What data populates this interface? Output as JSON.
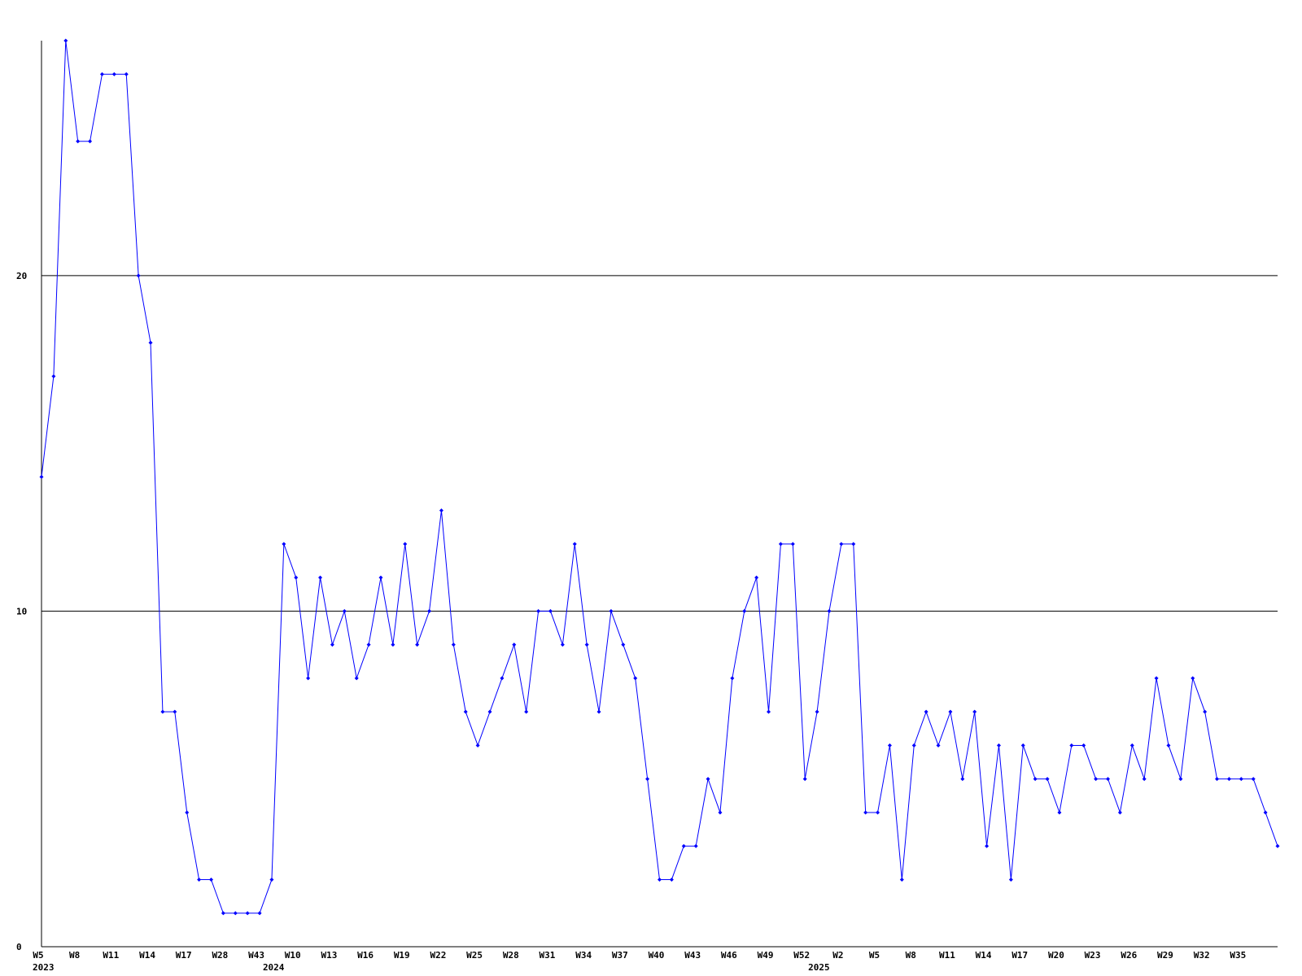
{
  "chart_data": {
    "type": "line",
    "categories": [
      "W5",
      null,
      null,
      "W8",
      null,
      null,
      "W11",
      null,
      null,
      "W14",
      null,
      null,
      "W17",
      null,
      null,
      "W28",
      null,
      null,
      "W43",
      null,
      null,
      "W10",
      null,
      null,
      "W13",
      null,
      null,
      "W16",
      null,
      null,
      "W19",
      null,
      null,
      "W22",
      null,
      null,
      "W25",
      null,
      null,
      "W28",
      null,
      null,
      "W31",
      null,
      null,
      "W34",
      null,
      null,
      "W37",
      null,
      null,
      "W40",
      null,
      null,
      "W43",
      null,
      null,
      "W46",
      null,
      null,
      "W49",
      null,
      null,
      "W52",
      null,
      null,
      "W2",
      null,
      null,
      "W5",
      null,
      null,
      "W8",
      null,
      null,
      "W11",
      null,
      null,
      "W14",
      null,
      null,
      "W17",
      null,
      null,
      "W20",
      null,
      null,
      "W23",
      null,
      null,
      "W26",
      null,
      null,
      "W29",
      null,
      null,
      "W32",
      null,
      null,
      "W35",
      null,
      null,
      null
    ],
    "years": [
      "2023",
      null,
      null,
      null,
      null,
      null,
      null,
      null,
      null,
      null,
      null,
      null,
      null,
      null,
      null,
      null,
      null,
      null,
      null,
      "2024",
      null,
      null,
      null,
      null,
      null,
      null,
      null,
      null,
      null,
      null,
      null,
      null,
      null,
      null,
      null,
      null,
      null,
      null,
      null,
      null,
      null,
      null,
      null,
      null,
      null,
      null,
      null,
      null,
      null,
      null,
      null,
      null,
      null,
      null,
      null,
      null,
      null,
      null,
      null,
      null,
      null,
      null,
      null,
      null,
      "2025",
      null,
      null,
      null,
      null,
      null,
      null,
      null,
      null,
      null,
      null,
      null,
      null,
      null,
      null,
      null,
      null,
      null,
      null,
      null,
      null,
      null,
      null,
      null,
      null,
      null,
      null,
      null,
      null,
      null,
      null,
      null,
      null,
      null,
      null,
      null,
      null,
      null,
      null
    ],
    "series": [
      {
        "color": "#0000ff",
        "values": [
          14,
          17,
          27,
          24,
          24,
          26,
          26,
          26,
          20,
          18,
          7,
          7,
          4,
          2,
          2,
          1,
          1,
          1,
          1,
          2,
          12,
          11,
          8,
          11,
          9,
          10,
          8,
          9,
          11,
          9,
          12,
          9,
          10,
          13,
          9,
          7,
          6,
          7,
          8,
          9,
          7,
          10,
          10,
          9,
          12,
          9,
          7,
          10,
          9,
          8,
          5,
          2,
          2,
          3,
          3,
          5,
          4,
          8,
          10,
          11,
          7,
          12,
          12,
          5,
          7,
          10,
          12,
          12,
          4,
          4,
          6,
          2,
          6,
          7,
          6,
          7,
          5,
          7,
          3,
          6,
          2,
          6,
          5,
          5,
          4,
          6,
          6,
          5,
          5,
          4,
          6,
          5,
          8,
          6,
          5,
          8,
          7,
          5,
          5,
          5,
          5,
          4,
          3
        ]
      }
    ],
    "ylim": [
      0,
      27
    ],
    "yticks": [
      0,
      10,
      20
    ],
    "grid": true
  }
}
